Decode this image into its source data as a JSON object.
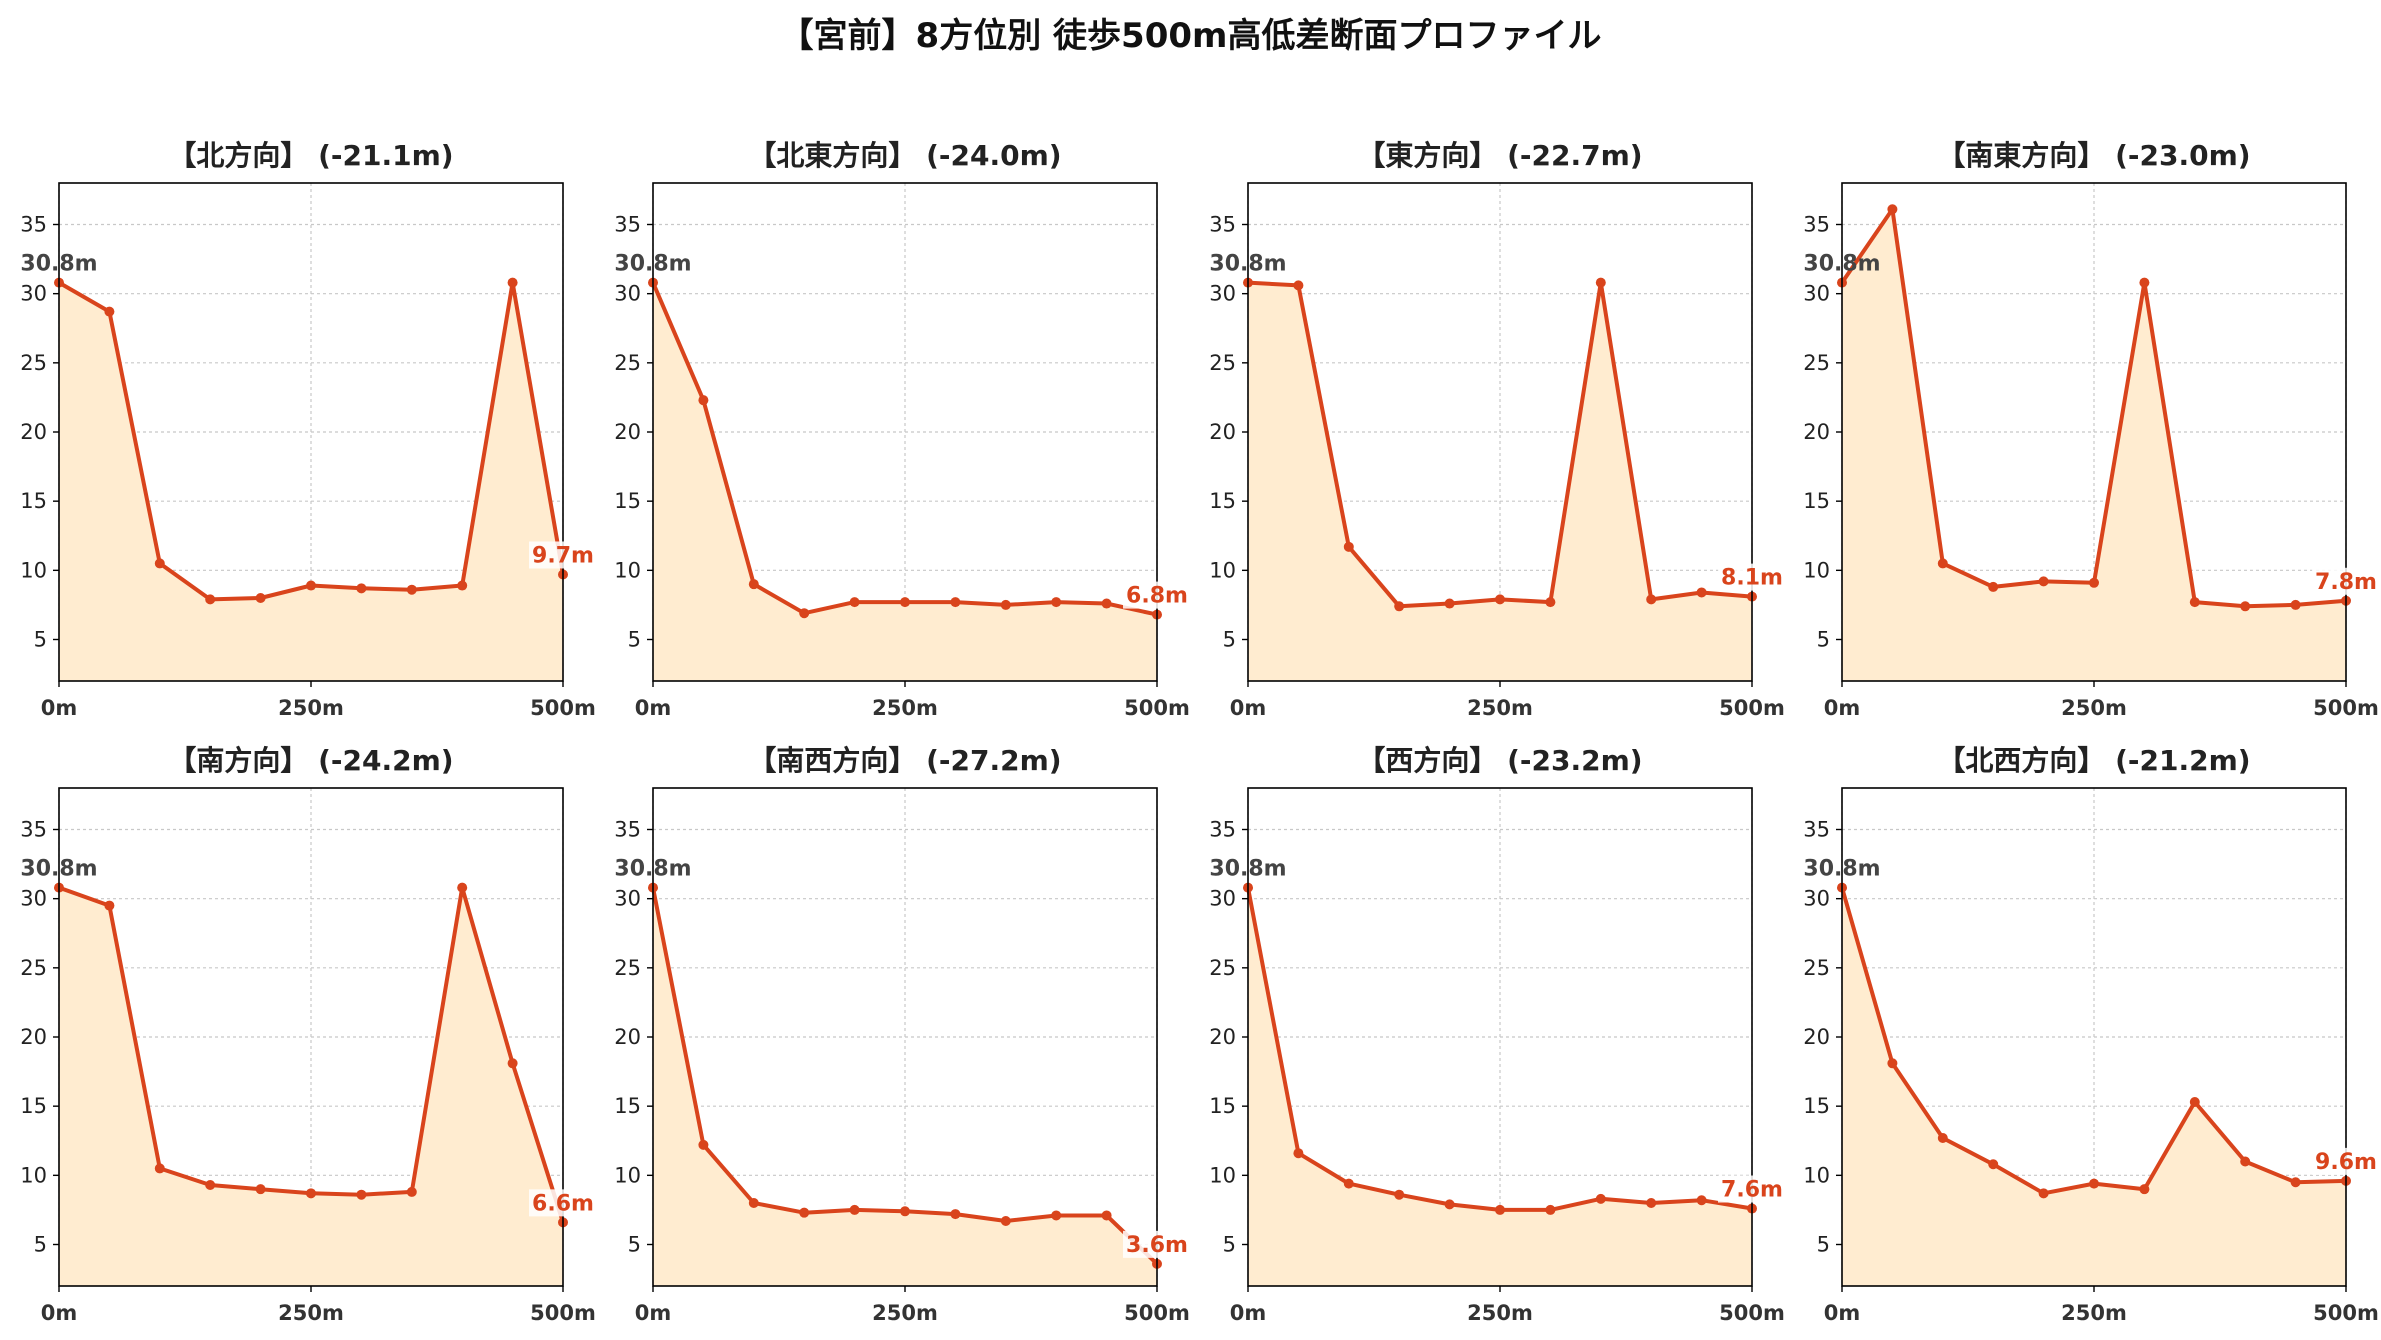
{
  "title": "【宮前】8方位別 徒歩500m高低差断面プロファイル",
  "colors": {
    "line": "#d9441c",
    "fill": "#ffecd0",
    "grid": "#c8c8c8",
    "axis": "#000000"
  },
  "chart_data": [
    {
      "type": "area",
      "title": "【北方向】 (-21.1m)",
      "x": [
        0,
        50,
        100,
        150,
        200,
        250,
        300,
        350,
        400,
        450,
        500
      ],
      "values": [
        30.8,
        28.7,
        10.5,
        7.9,
        8.0,
        8.9,
        8.7,
        8.6,
        8.9,
        30.8,
        9.7
      ],
      "xticks": [
        "0m",
        "250m",
        "500m"
      ],
      "yticks": [
        5,
        10,
        15,
        20,
        25,
        30,
        35
      ],
      "ylim": [
        2,
        38
      ],
      "xlim": [
        0,
        500
      ],
      "start_label": "30.8m",
      "end_label": "9.7m",
      "grid": true
    },
    {
      "type": "area",
      "title": "【北東方向】 (-24.0m)",
      "x": [
        0,
        50,
        100,
        150,
        200,
        250,
        300,
        350,
        400,
        450,
        500
      ],
      "values": [
        30.8,
        22.3,
        9.0,
        6.9,
        7.7,
        7.7,
        7.7,
        7.5,
        7.7,
        7.6,
        6.8
      ],
      "xticks": [
        "0m",
        "250m",
        "500m"
      ],
      "yticks": [
        5,
        10,
        15,
        20,
        25,
        30,
        35
      ],
      "ylim": [
        2,
        38
      ],
      "xlim": [
        0,
        500
      ],
      "start_label": "30.8m",
      "end_label": "6.8m",
      "grid": true
    },
    {
      "type": "area",
      "title": "【東方向】 (-22.7m)",
      "x": [
        0,
        50,
        100,
        150,
        200,
        250,
        300,
        350,
        400,
        450,
        500
      ],
      "values": [
        30.8,
        30.6,
        11.7,
        7.4,
        7.6,
        7.9,
        7.7,
        30.8,
        7.9,
        8.4,
        8.1
      ],
      "xticks": [
        "0m",
        "250m",
        "500m"
      ],
      "yticks": [
        5,
        10,
        15,
        20,
        25,
        30,
        35
      ],
      "ylim": [
        2,
        38
      ],
      "xlim": [
        0,
        500
      ],
      "start_label": "30.8m",
      "end_label": "8.1m",
      "grid": true
    },
    {
      "type": "area",
      "title": "【南東方向】 (-23.0m)",
      "x": [
        0,
        50,
        100,
        150,
        200,
        250,
        300,
        350,
        400,
        450,
        500
      ],
      "values": [
        30.8,
        36.1,
        10.5,
        8.8,
        9.2,
        9.1,
        30.8,
        7.7,
        7.4,
        7.5,
        7.8
      ],
      "xticks": [
        "0m",
        "250m",
        "500m"
      ],
      "yticks": [
        5,
        10,
        15,
        20,
        25,
        30,
        35
      ],
      "ylim": [
        2,
        38
      ],
      "xlim": [
        0,
        500
      ],
      "start_label": "30.8m",
      "end_label": "7.8m",
      "grid": true
    },
    {
      "type": "area",
      "title": "【南方向】 (-24.2m)",
      "x": [
        0,
        50,
        100,
        150,
        200,
        250,
        300,
        350,
        400,
        450,
        500
      ],
      "values": [
        30.8,
        29.5,
        10.5,
        9.3,
        9.0,
        8.7,
        8.6,
        8.8,
        30.8,
        18.1,
        6.6
      ],
      "xticks": [
        "0m",
        "250m",
        "500m"
      ],
      "yticks": [
        5,
        10,
        15,
        20,
        25,
        30,
        35
      ],
      "ylim": [
        2,
        38
      ],
      "xlim": [
        0,
        500
      ],
      "start_label": "30.8m",
      "end_label": "6.6m",
      "grid": true
    },
    {
      "type": "area",
      "title": "【南西方向】 (-27.2m)",
      "x": [
        0,
        50,
        100,
        150,
        200,
        250,
        300,
        350,
        400,
        450,
        500
      ],
      "values": [
        30.8,
        12.2,
        8.0,
        7.3,
        7.5,
        7.4,
        7.2,
        6.7,
        7.1,
        7.1,
        3.6
      ],
      "xticks": [
        "0m",
        "250m",
        "500m"
      ],
      "yticks": [
        5,
        10,
        15,
        20,
        25,
        30,
        35
      ],
      "ylim": [
        2,
        38
      ],
      "xlim": [
        0,
        500
      ],
      "start_label": "30.8m",
      "end_label": "3.6m",
      "grid": true
    },
    {
      "type": "area",
      "title": "【西方向】 (-23.2m)",
      "x": [
        0,
        50,
        100,
        150,
        200,
        250,
        300,
        350,
        400,
        450,
        500
      ],
      "values": [
        30.8,
        11.6,
        9.4,
        8.6,
        7.9,
        7.5,
        7.5,
        8.3,
        8.0,
        8.2,
        7.6
      ],
      "xticks": [
        "0m",
        "250m",
        "500m"
      ],
      "yticks": [
        5,
        10,
        15,
        20,
        25,
        30,
        35
      ],
      "ylim": [
        2,
        38
      ],
      "xlim": [
        0,
        500
      ],
      "start_label": "30.8m",
      "end_label": "7.6m",
      "grid": true
    },
    {
      "type": "area",
      "title": "【北西方向】 (-21.2m)",
      "x": [
        0,
        50,
        100,
        150,
        200,
        250,
        300,
        350,
        400,
        450,
        500
      ],
      "values": [
        30.8,
        18.1,
        12.7,
        10.8,
        8.7,
        9.4,
        9.0,
        15.3,
        11.0,
        9.5,
        9.6
      ],
      "xticks": [
        "0m",
        "250m",
        "500m"
      ],
      "yticks": [
        5,
        10,
        15,
        20,
        25,
        30,
        35
      ],
      "ylim": [
        2,
        38
      ],
      "xlim": [
        0,
        500
      ],
      "start_label": "30.8m",
      "end_label": "9.6m",
      "grid": true
    }
  ]
}
